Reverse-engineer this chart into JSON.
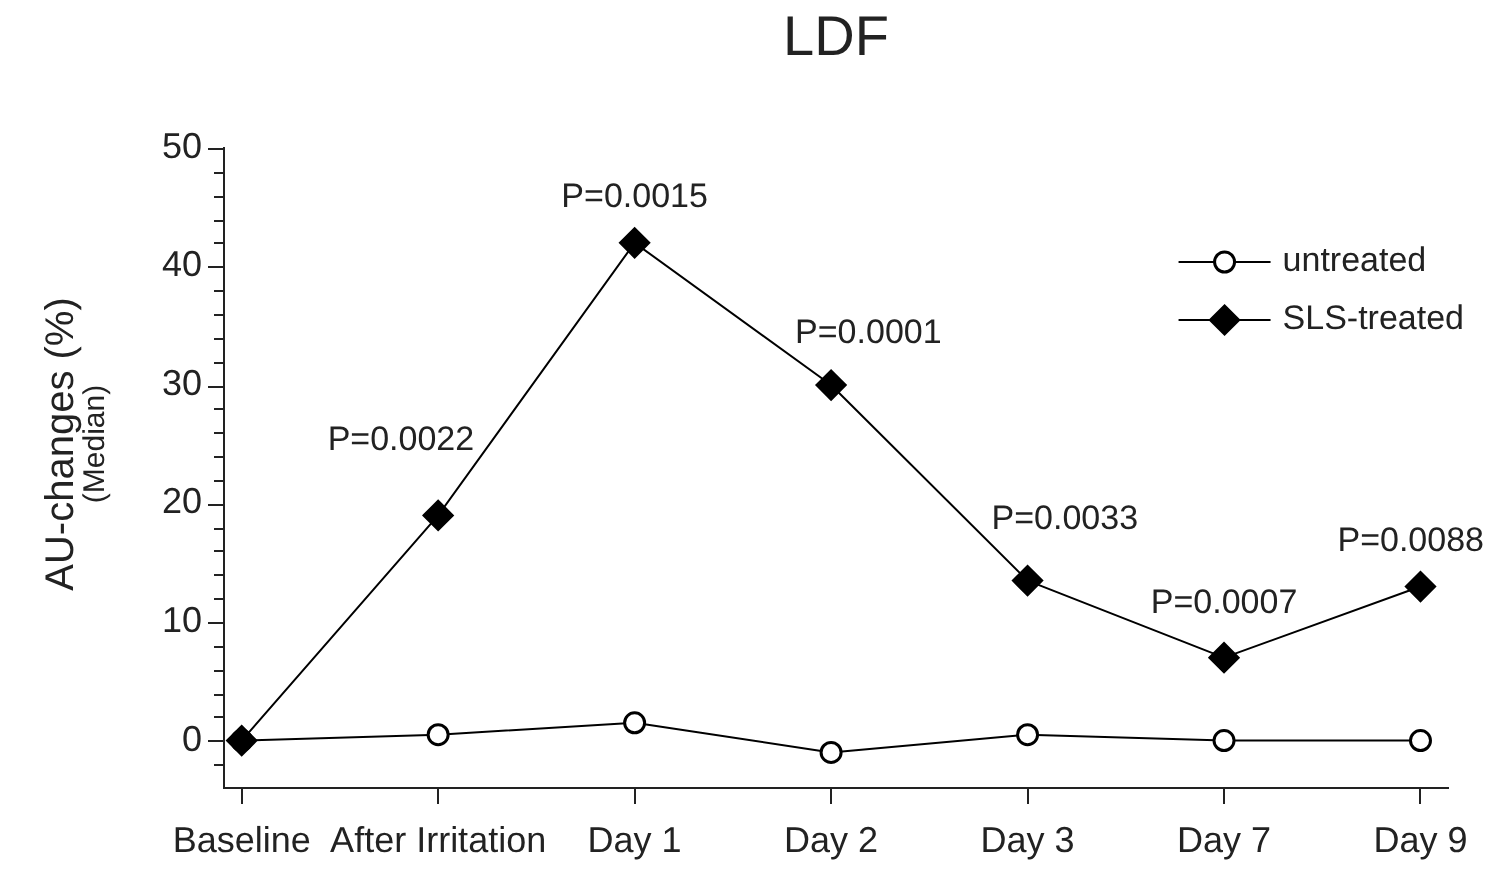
{
  "chart_data": {
    "type": "line",
    "title": "LDF",
    "ylabel": "AU-changes (%)\n(Median)",
    "categories": [
      "Baseline",
      "After Irritation",
      "Day 1",
      "Day 2",
      "Day 3",
      "Day 7",
      "Day 9"
    ],
    "series": [
      {
        "name": "untreated",
        "color": "#000000",
        "marker": "circle",
        "values": [
          0,
          0.5,
          1.5,
          -1,
          0.5,
          0,
          0
        ]
      },
      {
        "name": "SLS-treated",
        "color": "#000000",
        "marker": "diamond",
        "values": [
          0,
          19,
          42,
          30,
          13.5,
          7,
          13
        ]
      }
    ],
    "ylim": [
      -4,
      50
    ],
    "yticks": [
      {
        "value": -2,
        "label": null
      },
      0,
      {
        "value": 2,
        "label": null
      },
      {
        "value": 4,
        "label": null
      },
      {
        "value": 6,
        "label": null
      },
      {
        "value": 8,
        "label": null
      },
      10,
      {
        "value": 12,
        "label": null
      },
      {
        "value": 14,
        "label": null
      },
      {
        "value": 16,
        "label": null
      },
      {
        "value": 18,
        "label": null
      },
      20,
      {
        "value": 22,
        "label": null
      },
      {
        "value": 24,
        "label": null
      },
      {
        "value": 26,
        "label": null
      },
      {
        "value": 28,
        "label": null
      },
      30,
      {
        "value": 32,
        "label": null
      },
      {
        "value": 34,
        "label": null
      },
      {
        "value": 36,
        "label": null
      },
      {
        "value": 38,
        "label": null
      },
      40,
      {
        "value": 42,
        "label": null
      },
      {
        "value": 44,
        "label": null
      },
      {
        "value": 46,
        "label": null
      },
      {
        "value": 48,
        "label": null
      },
      50
    ],
    "grid": false,
    "legend": "top right",
    "line_style": "solid",
    "annotations": [
      {
        "text": "P=0.0022",
        "x": "After Irritation",
        "y": 19
      },
      {
        "text": "P=0.0015",
        "x": "Day 1",
        "y": 42
      },
      {
        "text": "P=0.0001",
        "x": "Day 2",
        "y": 30
      },
      {
        "text": "P=0.0033",
        "x": "Day 3",
        "y": 13.5
      },
      {
        "text": "P=0.0007",
        "x": "Day 7",
        "y": 7
      },
      {
        "text": "P=0.0088",
        "x": "Day 9",
        "y": 13
      }
    ]
  }
}
